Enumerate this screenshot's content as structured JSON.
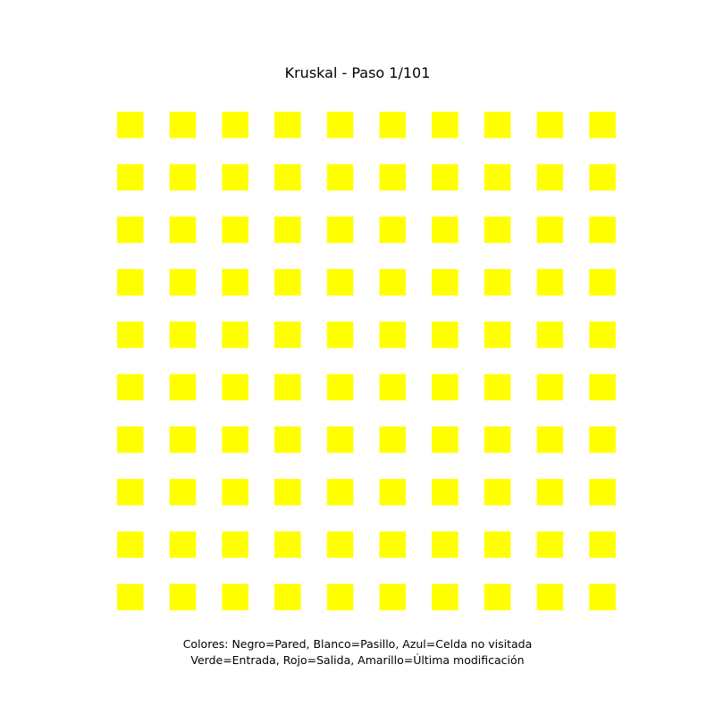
{
  "figure": {
    "title": "Kruskal - Paso 1/101"
  },
  "maze": {
    "rows": 10,
    "cols": 10,
    "cell_fill": "#ffff00",
    "background": "#ffffff",
    "cells": [
      [
        "Y",
        "Y",
        "Y",
        "Y",
        "Y",
        "Y",
        "Y",
        "Y",
        "Y",
        "Y"
      ],
      [
        "Y",
        "Y",
        "Y",
        "Y",
        "Y",
        "Y",
        "Y",
        "Y",
        "Y",
        "Y"
      ],
      [
        "Y",
        "Y",
        "Y",
        "Y",
        "Y",
        "Y",
        "Y",
        "Y",
        "Y",
        "Y"
      ],
      [
        "Y",
        "Y",
        "Y",
        "Y",
        "Y",
        "Y",
        "Y",
        "Y",
        "Y",
        "Y"
      ],
      [
        "Y",
        "Y",
        "Y",
        "Y",
        "Y",
        "Y",
        "Y",
        "Y",
        "Y",
        "Y"
      ],
      [
        "Y",
        "Y",
        "Y",
        "Y",
        "Y",
        "Y",
        "Y",
        "Y",
        "Y",
        "Y"
      ],
      [
        "Y",
        "Y",
        "Y",
        "Y",
        "Y",
        "Y",
        "Y",
        "Y",
        "Y",
        "Y"
      ],
      [
        "Y",
        "Y",
        "Y",
        "Y",
        "Y",
        "Y",
        "Y",
        "Y",
        "Y",
        "Y"
      ],
      [
        "Y",
        "Y",
        "Y",
        "Y",
        "Y",
        "Y",
        "Y",
        "Y",
        "Y",
        "Y"
      ],
      [
        "Y",
        "Y",
        "Y",
        "Y",
        "Y",
        "Y",
        "Y",
        "Y",
        "Y",
        "Y"
      ]
    ]
  },
  "legend": {
    "line1": "Colores: Negro=Pared, Blanco=Pasillo, Azul=Celda no visitada",
    "line2": "Verde=Entrada, Rojo=Salida, Amarillo=Última modificación"
  }
}
